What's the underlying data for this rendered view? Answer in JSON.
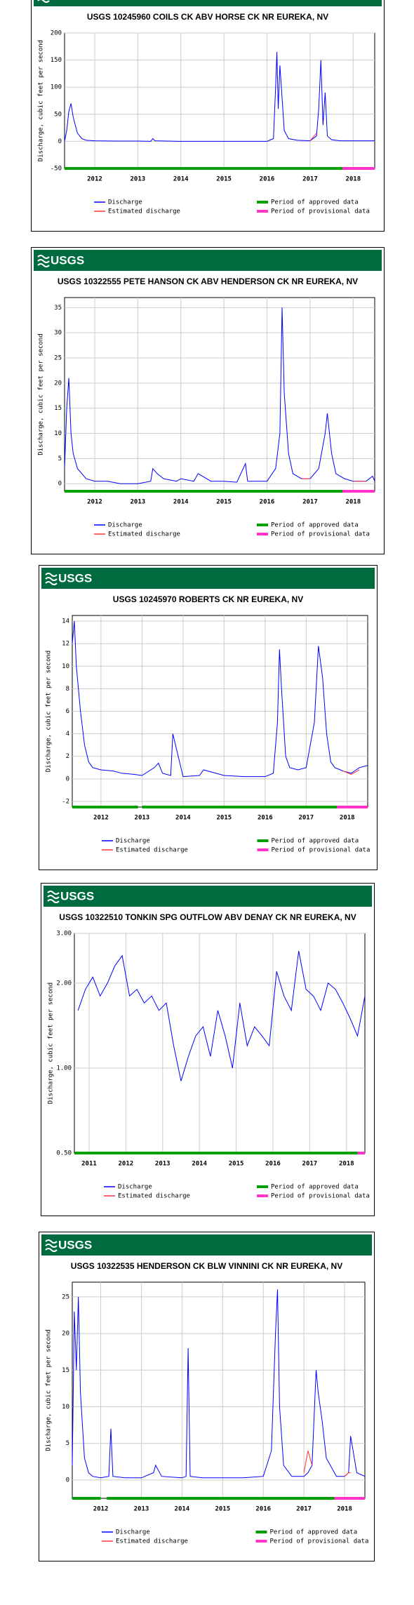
{
  "chart_data": [
    {
      "type": "line",
      "logo": "USGS",
      "title": "USGS 10245960 COILS CK ABV HORSE CK NR EUREKA, NV",
      "ylabel": "Discharge, cubic feet per second",
      "x": [
        2011.3,
        2011.35,
        2011.4,
        2011.45,
        2011.5,
        2011.55,
        2011.6,
        2011.7,
        2011.8,
        2012.0,
        2012.5,
        2013.0,
        2013.3,
        2013.35,
        2013.4,
        2014.0,
        2015.0,
        2015.5,
        2016.0,
        2016.15,
        2016.2,
        2016.23,
        2016.26,
        2016.3,
        2016.35,
        2016.4,
        2016.5,
        2016.7,
        2017.0,
        2017.15,
        2017.2,
        2017.25,
        2017.3,
        2017.35,
        2017.4,
        2017.5,
        2017.7,
        2018.0,
        2018.5
      ],
      "series": [
        {
          "name": "Discharge",
          "color": "#0000ff",
          "values": [
            0,
            20,
            55,
            70,
            45,
            30,
            15,
            5,
            2,
            1,
            0.5,
            0.5,
            0,
            5,
            1,
            0,
            0,
            0,
            0,
            5,
            100,
            165,
            60,
            140,
            80,
            20,
            5,
            2,
            1,
            10,
            60,
            150,
            30,
            90,
            10,
            3,
            1,
            1,
            1
          ]
        },
        {
          "name": "Estimated discharge",
          "color": "#ff3333",
          "values": [
            null,
            null,
            null,
            null,
            null,
            null,
            null,
            null,
            null,
            null,
            null,
            null,
            null,
            null,
            null,
            null,
            null,
            null,
            null,
            null,
            null,
            null,
            null,
            null,
            null,
            null,
            null,
            null,
            1,
            15,
            null,
            null,
            null,
            null,
            null,
            null,
            null,
            null,
            null
          ]
        }
      ],
      "periods": [
        {
          "name": "Period of approved data",
          "color": "#00a000",
          "ranges": [
            [
              2011.3,
              2017.75
            ]
          ]
        },
        {
          "name": "Period of provisional data",
          "color": "#ff33cc",
          "ranges": [
            [
              2017.75,
              2018.5
            ]
          ]
        }
      ],
      "xlim": [
        2011.3,
        2018.5
      ],
      "xticks": [
        2012,
        2013,
        2014,
        2015,
        2016,
        2017,
        2018
      ],
      "ylim": [
        -50,
        200
      ],
      "yticks": [
        -50,
        0,
        50,
        100,
        150,
        200
      ],
      "grid": true
    },
    {
      "type": "line",
      "logo": "USGS",
      "title": "USGS 10322555 PETE HANSON CK ABV HENDERSON CK NR EUREKA, NV",
      "ylabel": "Discharge, cubic feet per second",
      "x": [
        2011.3,
        2011.35,
        2011.4,
        2011.45,
        2011.5,
        2011.6,
        2011.8,
        2012.0,
        2012.3,
        2012.6,
        2013.0,
        2013.3,
        2013.35,
        2013.45,
        2013.6,
        2013.9,
        2014.0,
        2014.3,
        2014.4,
        2014.7,
        2015.0,
        2015.3,
        2015.5,
        2015.55,
        2015.8,
        2016.0,
        2016.2,
        2016.3,
        2016.35,
        2016.4,
        2016.5,
        2016.6,
        2016.8,
        2017.0,
        2017.2,
        2017.35,
        2017.4,
        2017.5,
        2017.6,
        2017.8,
        2018.0,
        2018.3,
        2018.45,
        2018.5
      ],
      "series": [
        {
          "name": "Discharge",
          "color": "#0000ff",
          "values": [
            3,
            15,
            21,
            10,
            6,
            3,
            1,
            0.5,
            0.5,
            0,
            0,
            0.5,
            3,
            2,
            1,
            0.5,
            1,
            0.5,
            2,
            0.5,
            0.5,
            0.3,
            4,
            0.5,
            0.5,
            0.5,
            3,
            10,
            35,
            18,
            6,
            2,
            1,
            1,
            3,
            10,
            14,
            6,
            2,
            1,
            0.5,
            0.5,
            1.5,
            0.5
          ]
        },
        {
          "name": "Estimated discharge",
          "color": "#ff3333",
          "values": [
            null,
            null,
            null,
            null,
            null,
            null,
            null,
            null,
            null,
            null,
            null,
            null,
            null,
            null,
            null,
            null,
            null,
            null,
            null,
            null,
            null,
            null,
            null,
            null,
            null,
            null,
            null,
            null,
            null,
            null,
            null,
            null,
            1,
            1,
            null,
            null,
            null,
            null,
            null,
            null,
            0.5,
            0.5,
            null,
            null
          ]
        }
      ],
      "periods": [
        {
          "name": "Period of approved data",
          "color": "#00a000",
          "ranges": [
            [
              2011.3,
              2017.75
            ]
          ]
        },
        {
          "name": "Period of provisional data",
          "color": "#ff33cc",
          "ranges": [
            [
              2017.75,
              2018.5
            ]
          ]
        }
      ],
      "xlim": [
        2011.3,
        2018.5
      ],
      "xticks": [
        2012,
        2013,
        2014,
        2015,
        2016,
        2017,
        2018
      ],
      "ylim": [
        -1.5,
        37
      ],
      "yticks": [
        0,
        5,
        10,
        15,
        20,
        25,
        30,
        35
      ],
      "grid": true
    },
    {
      "type": "line",
      "logo": "USGS",
      "title": "USGS 10245970 ROBERTS CK NR EUREKA, NV",
      "ylabel": "Discharge, cubic feet per second",
      "x": [
        2011.3,
        2011.35,
        2011.4,
        2011.5,
        2011.6,
        2011.7,
        2011.8,
        2012.0,
        2012.3,
        2012.5,
        2012.8,
        2013.0,
        2013.3,
        2013.4,
        2013.5,
        2013.7,
        2013.75,
        2014.0,
        2014.4,
        2014.5,
        2015.0,
        2015.5,
        2016.0,
        2016.2,
        2016.3,
        2016.35,
        2016.4,
        2016.5,
        2016.6,
        2016.8,
        2017.0,
        2017.2,
        2017.3,
        2017.4,
        2017.5,
        2017.6,
        2017.7,
        2017.9,
        2018.1,
        2018.3,
        2018.5
      ],
      "series": [
        {
          "name": "Discharge",
          "color": "#0000ff",
          "values": [
            12,
            14,
            10,
            6,
            3,
            1.5,
            1,
            0.8,
            0.7,
            0.5,
            0.4,
            0.3,
            1,
            1.4,
            0.5,
            0.3,
            4,
            0.2,
            0.3,
            0.8,
            0.3,
            0.2,
            0.2,
            0.5,
            5,
            11.5,
            8,
            2,
            1,
            0.8,
            1,
            5,
            11.8,
            9,
            4,
            1.5,
            1,
            0.7,
            0.5,
            1,
            1.2
          ]
        },
        {
          "name": "Estimated discharge",
          "color": "#ff3333",
          "values": [
            null,
            null,
            null,
            null,
            null,
            null,
            null,
            null,
            null,
            null,
            null,
            null,
            null,
            null,
            null,
            null,
            null,
            null,
            null,
            null,
            null,
            null,
            null,
            null,
            null,
            null,
            null,
            null,
            null,
            null,
            null,
            null,
            null,
            null,
            null,
            null,
            null,
            0.7,
            0.4,
            0.8,
            null
          ]
        }
      ],
      "periods": [
        {
          "name": "Period of approved data",
          "color": "#00a000",
          "ranges": [
            [
              2011.3,
              2012.9
            ],
            [
              2013.0,
              2017.75
            ]
          ]
        },
        {
          "name": "Period of provisional data",
          "color": "#ff33cc",
          "ranges": [
            [
              2017.75,
              2018.5
            ]
          ]
        }
      ],
      "xlim": [
        2011.3,
        2018.5
      ],
      "xticks": [
        2012,
        2013,
        2014,
        2015,
        2016,
        2017,
        2018
      ],
      "ylim": [
        -2.5,
        14.5
      ],
      "yticks": [
        -2,
        0,
        2,
        4,
        6,
        8,
        10,
        12,
        14
      ],
      "grid": true
    },
    {
      "type": "line",
      "logo": "USGS",
      "title": "USGS 10322510 TONKIN SPG OUTFLOW ABV DENAY CK NR EUREKA, NV",
      "ylabel": "Discharge, cubic feet per second",
      "x": [
        2010.7,
        2010.9,
        2011.1,
        2011.3,
        2011.5,
        2011.7,
        2011.9,
        2012.1,
        2012.3,
        2012.5,
        2012.7,
        2012.9,
        2013.1,
        2013.3,
        2013.5,
        2013.7,
        2013.9,
        2014.1,
        2014.3,
        2014.5,
        2014.7,
        2014.9,
        2015.1,
        2015.3,
        2015.5,
        2015.7,
        2015.9,
        2016.1,
        2016.3,
        2016.5,
        2016.7,
        2016.9,
        2017.1,
        2017.3,
        2017.5,
        2017.7,
        2017.9,
        2018.1,
        2018.3,
        2018.5
      ],
      "series": [
        {
          "name": "Discharge",
          "color": "#0000ff",
          "values": [
            1.6,
            1.9,
            2.1,
            1.8,
            2.0,
            2.3,
            2.5,
            1.8,
            1.9,
            1.7,
            1.8,
            1.6,
            1.7,
            1.2,
            0.9,
            1.1,
            1.3,
            1.4,
            1.1,
            1.6,
            1.3,
            1.0,
            1.7,
            1.2,
            1.4,
            1.3,
            1.2,
            2.2,
            1.8,
            1.6,
            2.6,
            1.9,
            1.8,
            1.6,
            2.0,
            1.9,
            1.7,
            1.5,
            1.3,
            1.8
          ]
        },
        {
          "name": "Estimated discharge",
          "color": "#ff3333",
          "values": [
            null,
            null,
            null,
            null,
            null,
            null,
            null,
            null,
            null,
            null,
            null,
            null,
            null,
            null,
            null,
            null,
            null,
            null,
            null,
            null,
            null,
            null,
            null,
            null,
            null,
            null,
            null,
            null,
            null,
            null,
            null,
            null,
            null,
            null,
            null,
            null,
            null,
            null,
            null,
            null
          ]
        }
      ],
      "periods": [
        {
          "name": "Period of approved data",
          "color": "#00a000",
          "ranges": [
            [
              2010.6,
              2018.3
            ]
          ]
        },
        {
          "name": "Period of provisional data",
          "color": "#ff33cc",
          "ranges": [
            [
              2018.3,
              2018.5
            ]
          ]
        }
      ],
      "xlim": [
        2010.6,
        2018.5
      ],
      "xticks": [
        2011,
        2012,
        2013,
        2014,
        2015,
        2016,
        2017,
        2018
      ],
      "ylim": [
        0.5,
        3
      ],
      "log": true,
      "yticks": [
        {
          "value": 0.5,
          "label": "0.50"
        },
        {
          "value": 1,
          "label": "1.00"
        },
        {
          "value": 2,
          "label": "2.00"
        },
        {
          "value": 3,
          "label": "3.00"
        }
      ],
      "grid": true
    },
    {
      "type": "line",
      "logo": "USGS",
      "title": "USGS 10322535 HENDERSON CK BLW VINNINI CK NR EUREKA, NV",
      "ylabel": "Discharge, cubic feet per second",
      "x": [
        2011.3,
        2011.35,
        2011.4,
        2011.45,
        2011.5,
        2011.6,
        2011.7,
        2011.8,
        2012.0,
        2012.2,
        2012.25,
        2012.3,
        2012.6,
        2013.0,
        2013.3,
        2013.35,
        2013.5,
        2014.0,
        2014.1,
        2014.15,
        2014.2,
        2014.5,
        2015.0,
        2015.5,
        2016.0,
        2016.2,
        2016.3,
        2016.35,
        2016.4,
        2016.5,
        2016.7,
        2017.0,
        2017.1,
        2017.2,
        2017.3,
        2017.35,
        2017.45,
        2017.55,
        2017.8,
        2018.0,
        2018.1,
        2018.15,
        2018.3,
        2018.5
      ],
      "series": [
        {
          "name": "Discharge",
          "color": "#0000ff",
          "values": [
            2,
            23,
            15,
            25,
            12,
            3,
            1,
            0.5,
            0.3,
            0.5,
            7,
            0.5,
            0.3,
            0.3,
            1,
            2,
            0.5,
            0.3,
            0.5,
            18,
            0.5,
            0.3,
            0.3,
            0.3,
            0.5,
            4,
            20,
            26,
            10,
            2,
            0.5,
            0.5,
            1,
            2,
            15,
            12,
            8,
            3,
            0.5,
            0.5,
            1,
            6,
            1,
            0.5
          ]
        },
        {
          "name": "Estimated discharge",
          "color": "#ff3333",
          "values": [
            null,
            null,
            null,
            null,
            null,
            null,
            null,
            null,
            null,
            null,
            null,
            null,
            null,
            null,
            null,
            null,
            null,
            null,
            null,
            null,
            null,
            null,
            null,
            null,
            null,
            null,
            null,
            null,
            null,
            null,
            null,
            1,
            4,
            2,
            null,
            null,
            null,
            null,
            null,
            0.5,
            1,
            1,
            null,
            null
          ]
        }
      ],
      "periods": [
        {
          "name": "Period of approved data",
          "color": "#00a000",
          "ranges": [
            [
              2011.3,
              2012.0
            ],
            [
              2012.15,
              2017.75
            ]
          ]
        },
        {
          "name": "Period of provisional data",
          "color": "#ff33cc",
          "ranges": [
            [
              2017.75,
              2018.5
            ]
          ]
        }
      ],
      "xlim": [
        2011.3,
        2018.5
      ],
      "xticks": [
        2012,
        2013,
        2014,
        2015,
        2016,
        2017,
        2018
      ],
      "ylim": [
        -2.5,
        27
      ],
      "yticks": [
        0,
        5,
        10,
        15,
        20,
        25
      ],
      "grid": true
    }
  ]
}
